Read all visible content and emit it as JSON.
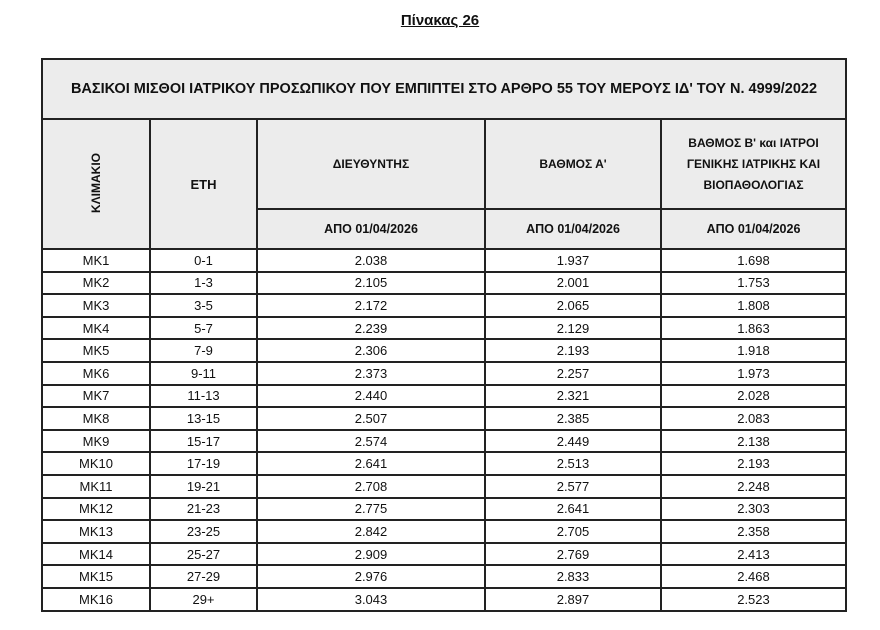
{
  "document": {
    "table_number": "Πίνακας 26",
    "table_title": "ΒΑΣΙΚΟΙ ΜΙΣΘΟΙ ΙΑΤΡΙΚΟΥ ΠΡΟΣΩΠΙΚΟΥ ΠΟΥ ΕΜΠΙΠΤΕΙ ΣΤΟ ΑΡΘΡΟ 55 ΤΟΥ ΜΕΡΟΥΣ ΙΔ' ΤΟΥ Ν. 4999/2022",
    "headers": {
      "grade": "ΚΛΙΜΑΚΙΟ",
      "years": "ΕΤΗ",
      "director": "ΔΙΕΥΘΥΝΤΗΣ",
      "grade_a": "ΒΑΘΜΟΣ Α'",
      "grade_b": "ΒΑΘΜΟΣ Β' και ΙΑΤΡΟΙ ΓΕΝΙΚΗΣ ΙΑΤΡΙΚΗΣ ΚΑΙ ΒΙΟΠΑΘΟΛΟΓΙΑΣ",
      "date_director": "ΑΠΟ 01/04/2026",
      "date_grade_a": "ΑΠΟ 01/04/2026",
      "date_grade_b": "ΑΠΟ 01/04/2026"
    },
    "rows": [
      [
        "ΜΚ1",
        "0-1",
        "2.038",
        "1.937",
        "1.698"
      ],
      [
        "ΜΚ2",
        "1-3",
        "2.105",
        "2.001",
        "1.753"
      ],
      [
        "ΜΚ3",
        "3-5",
        "2.172",
        "2.065",
        "1.808"
      ],
      [
        "ΜΚ4",
        "5-7",
        "2.239",
        "2.129",
        "1.863"
      ],
      [
        "ΜΚ5",
        "7-9",
        "2.306",
        "2.193",
        "1.918"
      ],
      [
        "ΜΚ6",
        "9-11",
        "2.373",
        "2.257",
        "1.973"
      ],
      [
        "ΜΚ7",
        "11-13",
        "2.440",
        "2.321",
        "2.028"
      ],
      [
        "ΜΚ8",
        "13-15",
        "2.507",
        "2.385",
        "2.083"
      ],
      [
        "ΜΚ9",
        "15-17",
        "2.574",
        "2.449",
        "2.138"
      ],
      [
        "ΜΚ10",
        "17-19",
        "2.641",
        "2.513",
        "2.193"
      ],
      [
        "ΜΚ11",
        "19-21",
        "2.708",
        "2.577",
        "2.248"
      ],
      [
        "ΜΚ12",
        "21-23",
        "2.775",
        "2.641",
        "2.303"
      ],
      [
        "ΜΚ13",
        "23-25",
        "2.842",
        "2.705",
        "2.358"
      ],
      [
        "ΜΚ14",
        "25-27",
        "2.909",
        "2.769",
        "2.413"
      ],
      [
        "ΜΚ15",
        "27-29",
        "2.976",
        "2.833",
        "2.468"
      ],
      [
        "ΜΚ16",
        "29+",
        "3.043",
        "2.897",
        "2.523"
      ]
    ]
  }
}
